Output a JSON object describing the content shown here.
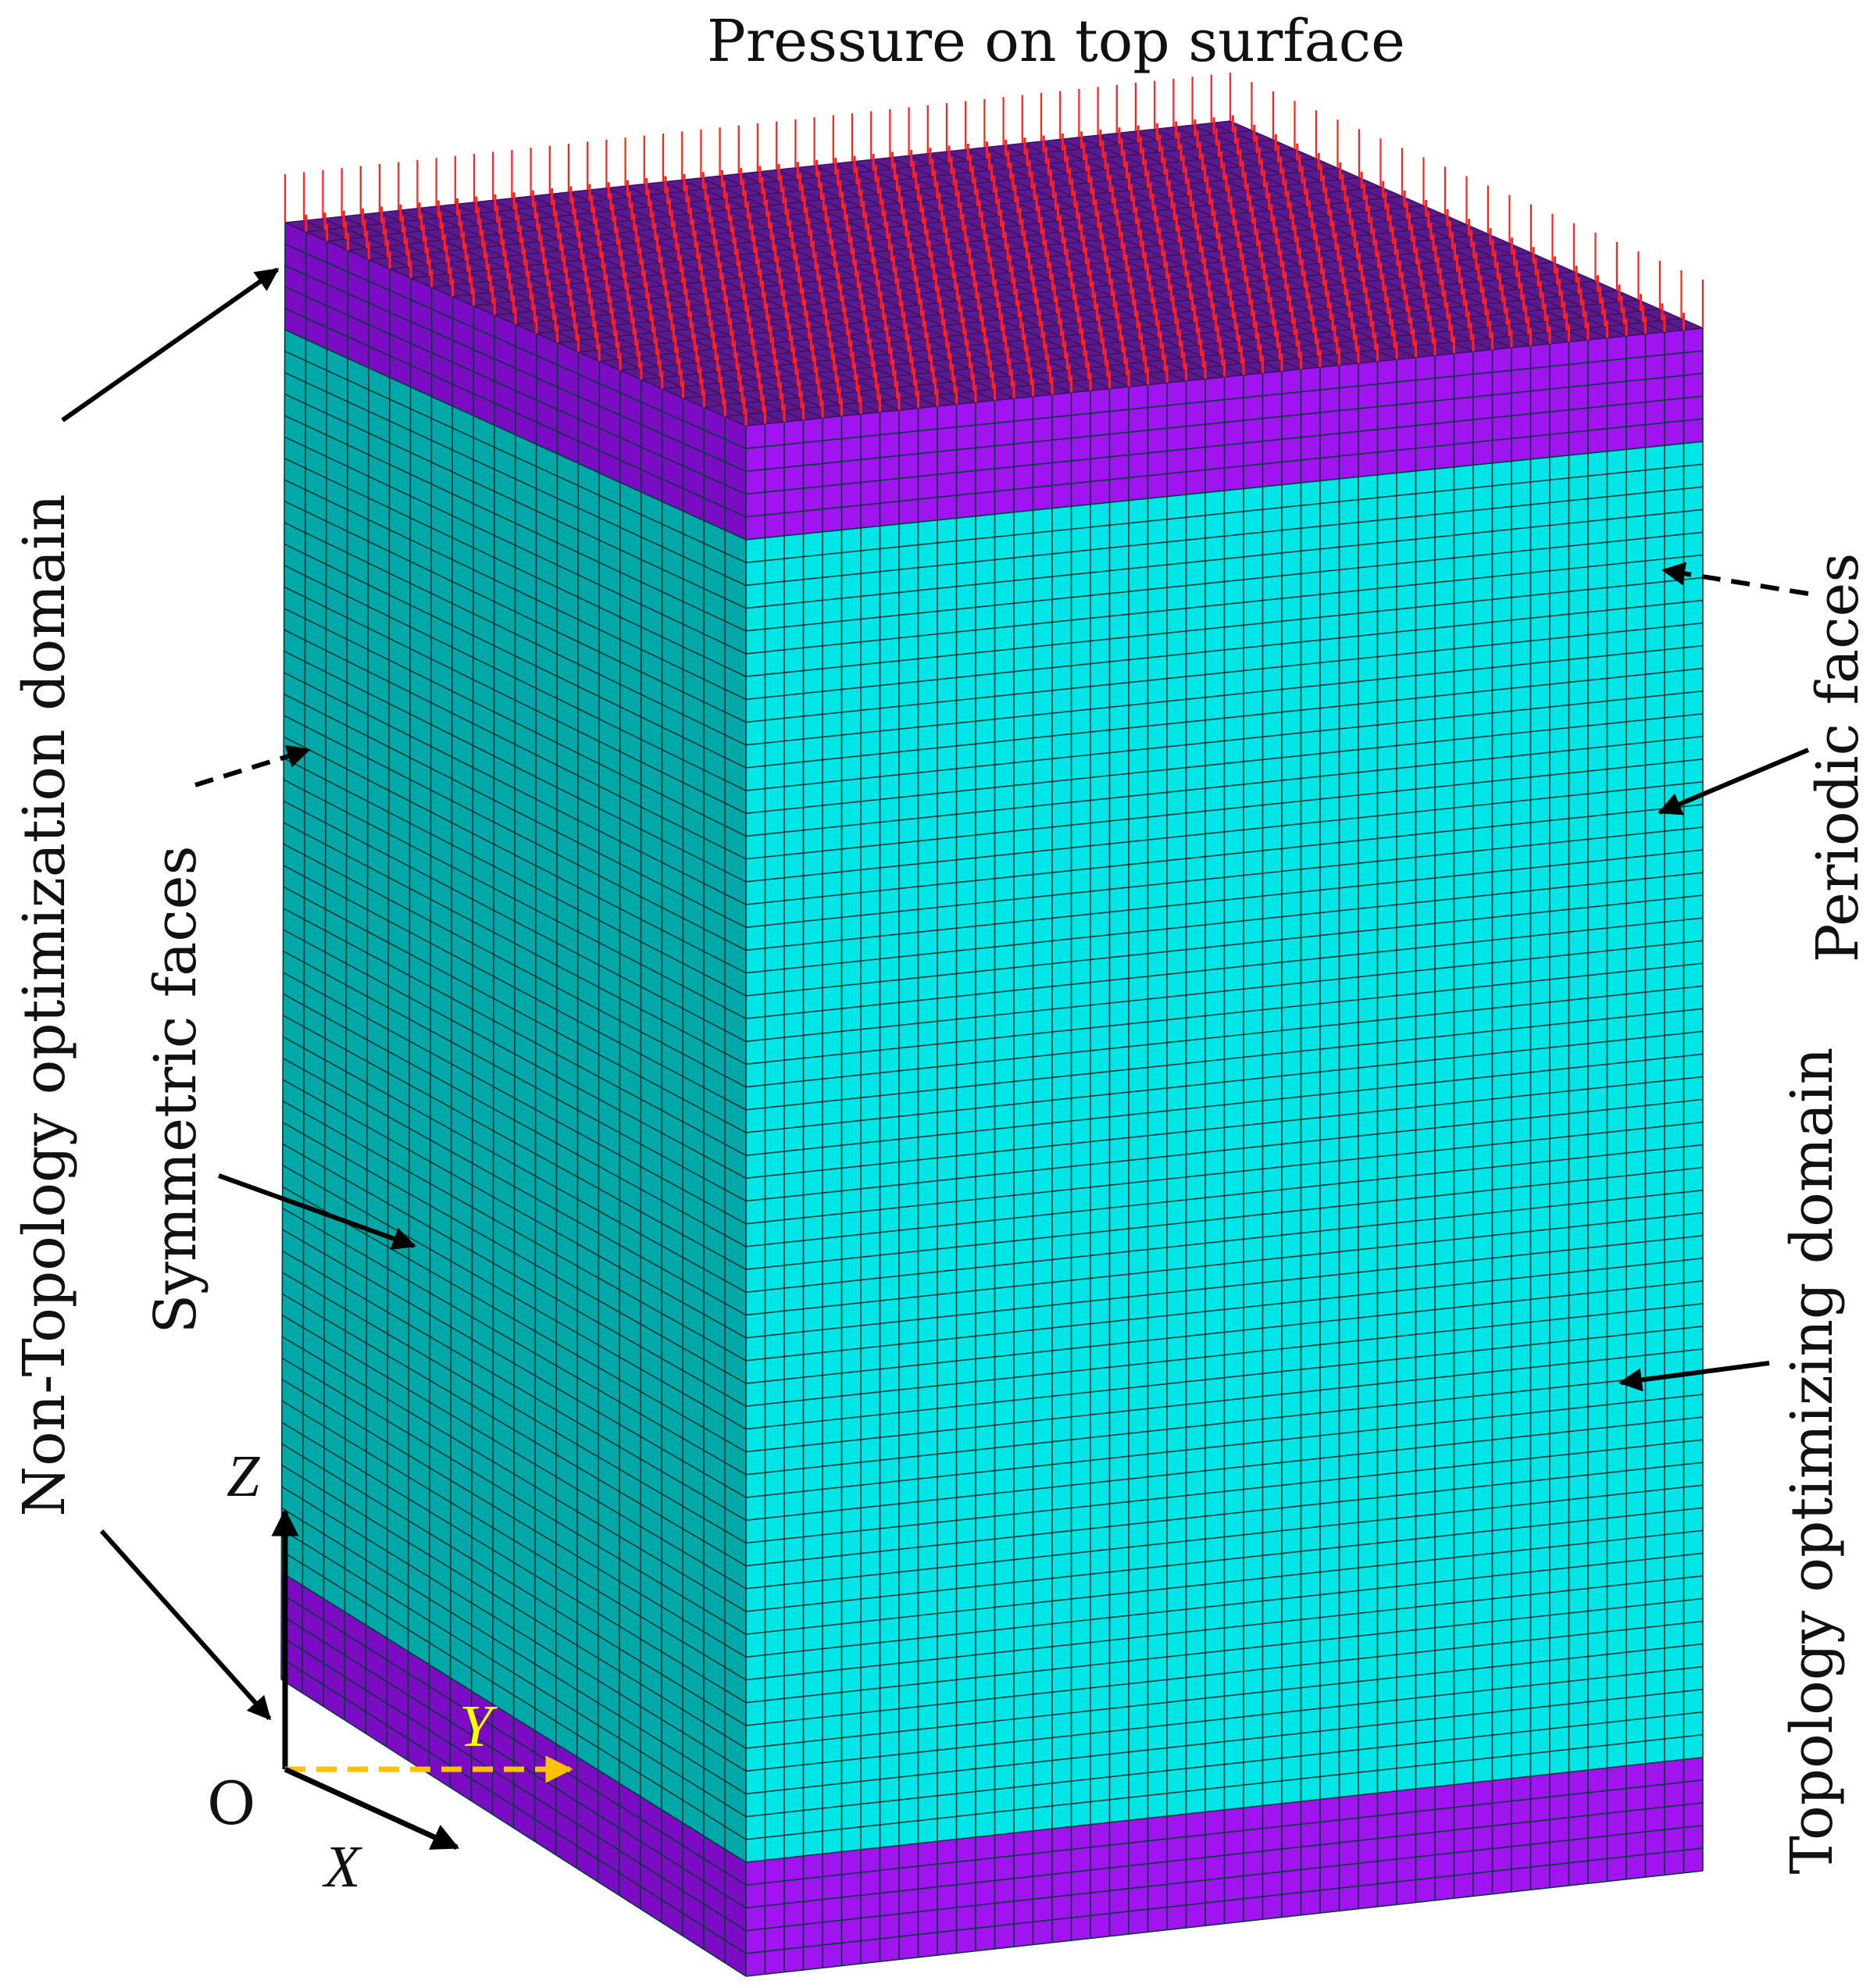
{
  "labels": {
    "pressure": "Pressure on top surface",
    "non_topology": "Non-Topology optimization domain",
    "symmetric": "Symmetric faces",
    "periodic": "Periodic faces",
    "topology": "Topology optimizing domain"
  },
  "axes": {
    "origin": "O",
    "x": "X",
    "y": "Y",
    "z": "Z"
  },
  "mesh": {
    "front_columns": 50,
    "side_columns": 22,
    "top_depth_divisions": 22,
    "slab_rows": 5,
    "middle_rows": 58
  },
  "colors": {
    "front_face": "#00e5e5",
    "side_face": "#00a8a8",
    "slab_front": "#a014f0",
    "slab_side": "#7b0cc4",
    "top_face": "#5a1a8c",
    "pressure_arrows": "#ff2020",
    "y_axis": "#ffc000",
    "y_label": "#ffff00",
    "mesh_line": "#063a3a"
  }
}
